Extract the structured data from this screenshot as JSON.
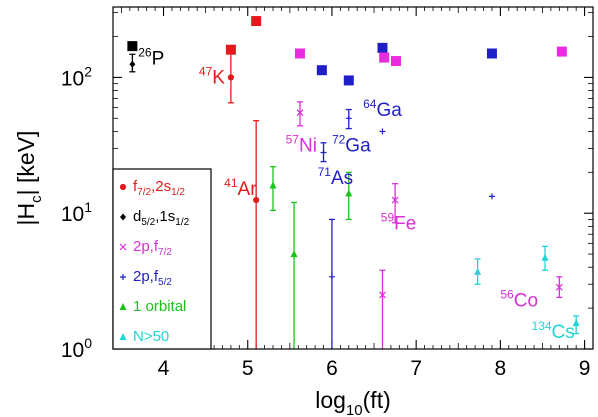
{
  "chart_data": {
    "type": "scatter",
    "xlabel": "log10(ft)",
    "ylabel": "|Hc| [keV]",
    "xlim": [
      3.4,
      9.1
    ],
    "ylim": [
      1,
      330
    ],
    "yscale": "log",
    "xticks": [
      "4",
      "5",
      "6",
      "7",
      "8",
      "9"
    ],
    "yticks": [
      "10^0",
      "10^1",
      "10^2"
    ],
    "grid": false,
    "legend_placement": "bottom-left",
    "legend": [
      {
        "label": "f7/2,2s1/2",
        "color": "#e41a1c",
        "marker": "circle"
      },
      {
        "label": "d5/2,1s1/2",
        "color": "#000000",
        "marker": "diamond"
      },
      {
        "label": "2p,f7/2",
        "color": "#d82fd8",
        "marker": "x"
      },
      {
        "label": "2p,f5/2",
        "color": "#1f1fc8",
        "marker": "plus"
      },
      {
        "label": "1 orbital",
        "color": "#19c419",
        "marker": "triangle"
      },
      {
        "label": "N>50",
        "color": "#1fd6d6",
        "marker": "triangle"
      }
    ],
    "series": [
      {
        "name": "f7/2,2s1/2",
        "color": "#e41a1c",
        "marker": "circle",
        "points": [
          {
            "x": 4.8,
            "y": 100,
            "lo": 65,
            "hi": 150
          },
          {
            "x": 5.1,
            "y": 12.5,
            "lo": 1,
            "hi": 48
          }
        ]
      },
      {
        "name": "d5/2,1s1/2",
        "color": "#000000",
        "marker": "diamond",
        "points": [
          {
            "x": 3.63,
            "y": 125,
            "lo": 110,
            "hi": 148
          }
        ]
      },
      {
        "name": "2p,f7/2",
        "color": "#d82fd8",
        "marker": "x",
        "points": [
          {
            "x": 5.62,
            "y": 55,
            "lo": 44,
            "hi": 66
          },
          {
            "x": 6.75,
            "y": 12.5,
            "lo": 8.5,
            "hi": 16.5
          },
          {
            "x": 6.6,
            "y": 2.5,
            "lo": 1,
            "hi": 3.8
          },
          {
            "x": 8.7,
            "y": 2.85,
            "lo": 2.4,
            "hi": 3.4
          }
        ]
      },
      {
        "name": "2p,f5/2",
        "color": "#1f1fc8",
        "marker": "plus",
        "points": [
          {
            "x": 5.9,
            "y": 28,
            "lo": 24,
            "hi": 33
          },
          {
            "x": 6.2,
            "y": 50,
            "lo": 42,
            "hi": 58
          },
          {
            "x": 6.6,
            "y": 40,
            "lo": 40,
            "hi": 40
          },
          {
            "x": 7.9,
            "y": 13.3,
            "lo": 13.3,
            "hi": 13.3
          },
          {
            "x": 6.0,
            "y": 3.4,
            "lo": 1,
            "hi": 9
          }
        ]
      },
      {
        "name": "1 orbital",
        "color": "#19c419",
        "marker": "triangle",
        "points": [
          {
            "x": 5.3,
            "y": 16,
            "lo": 10.5,
            "hi": 22
          },
          {
            "x": 5.55,
            "y": 5,
            "lo": 1,
            "hi": 12
          },
          {
            "x": 6.2,
            "y": 14,
            "lo": 9,
            "hi": 20
          }
        ]
      },
      {
        "name": "N>50",
        "color": "#1fd6d6",
        "marker": "triangle",
        "points": [
          {
            "x": 7.73,
            "y": 3.7,
            "lo": 3.0,
            "hi": 4.6
          },
          {
            "x": 8.53,
            "y": 4.7,
            "lo": 3.8,
            "hi": 5.7
          },
          {
            "x": 8.9,
            "y": 1.55,
            "lo": 1.3,
            "hi": 1.75
          }
        ]
      }
    ],
    "squares": [
      {
        "x": 3.63,
        "y": 170,
        "color": "#000000"
      },
      {
        "x": 4.8,
        "y": 160,
        "color": "#e41a1c"
      },
      {
        "x": 5.1,
        "y": 260,
        "color": "#e41a1c"
      },
      {
        "x": 5.62,
        "y": 150,
        "color": "#e92be0"
      },
      {
        "x": 5.88,
        "y": 113,
        "color": "#1f1fc8"
      },
      {
        "x": 6.2,
        "y": 95,
        "color": "#1f1fc8"
      },
      {
        "x": 6.6,
        "y": 165,
        "color": "#1f1fc8"
      },
      {
        "x": 6.62,
        "y": 140,
        "color": "#e92be0"
      },
      {
        "x": 6.76,
        "y": 132,
        "color": "#e92be0"
      },
      {
        "x": 7.9,
        "y": 150,
        "color": "#1f1fc8"
      },
      {
        "x": 8.73,
        "y": 155,
        "color": "#e92be0"
      }
    ],
    "annotations": [
      {
        "mass": "26",
        "sym": "P",
        "x": 3.7,
        "y": 125,
        "color": "#000000"
      },
      {
        "mass": "47",
        "sym": "K",
        "x": 4.42,
        "y": 90,
        "color": "#e41a1c"
      },
      {
        "mass": "41",
        "sym": "Ar",
        "x": 4.72,
        "y": 13.6,
        "color": "#e41a1c"
      },
      {
        "mass": "57",
        "sym": "Ni",
        "x": 5.45,
        "y": 28.5,
        "color": "#d82fd8"
      },
      {
        "mass": "72",
        "sym": "Ga",
        "x": 6.0,
        "y": 28.5,
        "color": "#1f1fc8"
      },
      {
        "mass": "71",
        "sym": "As",
        "x": 5.83,
        "y": 16.4,
        "color": "#1f1fc8"
      },
      {
        "mass": "64",
        "sym": "Ga",
        "x": 6.37,
        "y": 52,
        "color": "#1f1fc8"
      },
      {
        "mass": "59",
        "sym": "Fe",
        "x": 6.58,
        "y": 7.6,
        "color": "#d82fd8"
      },
      {
        "mass": "56",
        "sym": "Co",
        "x": 8.0,
        "y": 2.05,
        "color": "#d82fd8"
      },
      {
        "mass": "134",
        "sym": "Cs",
        "x": 8.37,
        "y": 1.2,
        "color": "#1fd6d6"
      }
    ]
  }
}
